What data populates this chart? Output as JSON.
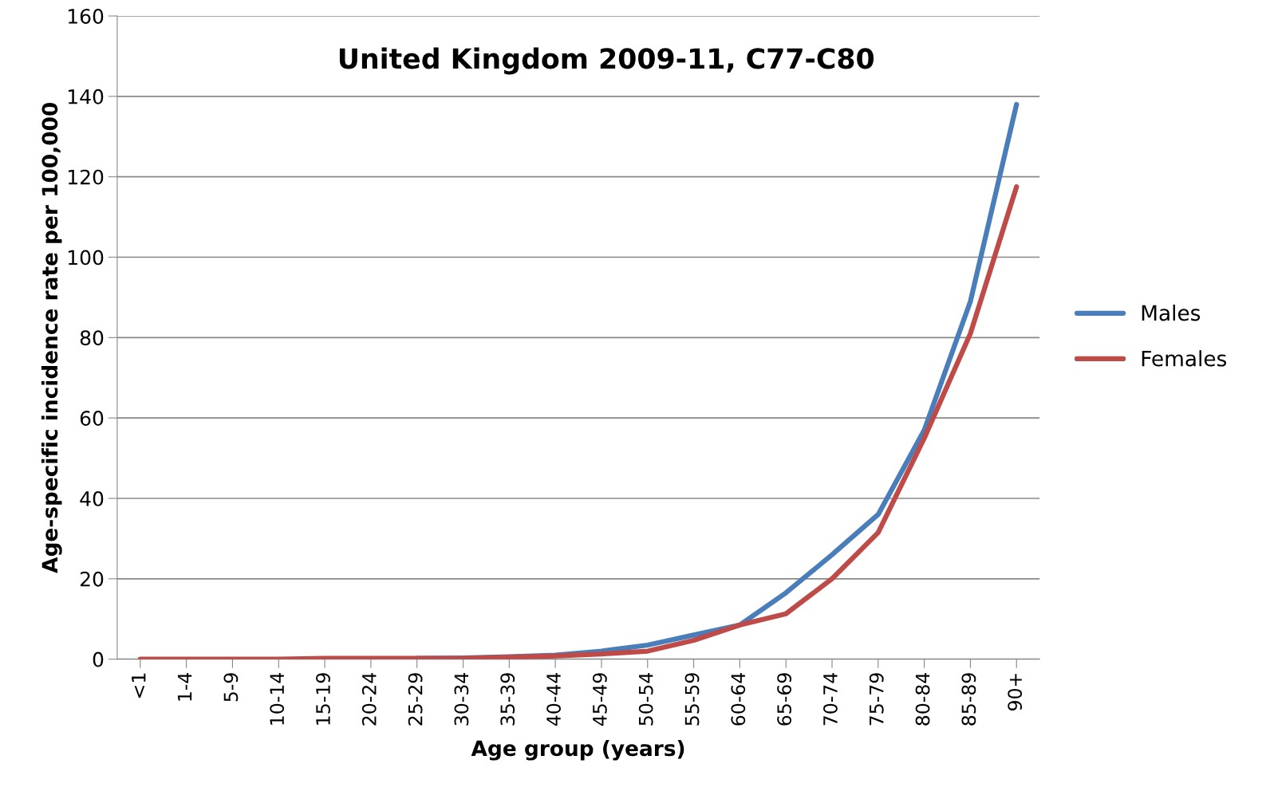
{
  "chart_data": {
    "type": "line",
    "title": "United Kingdom 2009-11, C77-C80",
    "xlabel": "Age group (years)",
    "ylabel": "Age-specific incidence rate per 100,000",
    "categories": [
      "<1",
      "1-4",
      "5-9",
      "10-14",
      "15-19",
      "20-24",
      "25-29",
      "30-34",
      "35-39",
      "40-44",
      "45-49",
      "50-54",
      "55-59",
      "60-64",
      "65-69",
      "70-74",
      "75-79",
      "80-84",
      "85-89",
      "90+"
    ],
    "series": [
      {
        "name": "Males",
        "color": "#4a7ebb",
        "values": [
          null,
          null,
          null,
          null,
          null,
          null,
          0.2,
          0.3,
          0.6,
          1,
          2,
          3.5,
          6,
          8.5,
          16.5,
          26,
          36,
          57,
          89,
          138
        ]
      },
      {
        "name": "Females",
        "color": "#be4b48",
        "values": [
          0,
          0,
          0,
          0,
          0.2,
          0.2,
          0.2,
          0.2,
          0.5,
          0.8,
          1.3,
          2,
          4.7,
          8.5,
          11.3,
          20,
          31.5,
          55,
          81,
          117.5
        ]
      }
    ],
    "ylim": [
      0,
      160
    ],
    "yticks": [
      0,
      20,
      40,
      60,
      80,
      100,
      120,
      140,
      160
    ],
    "grid": "y",
    "legend": "right",
    "marker": "none",
    "line_style": "solid"
  }
}
